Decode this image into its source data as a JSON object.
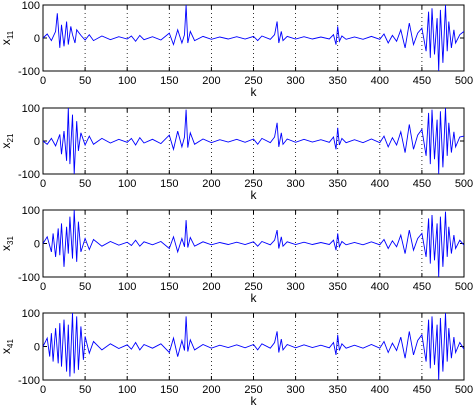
{
  "chart_data": [
    {
      "type": "line",
      "xlabel": "k",
      "ylabel": {
        "base": "x",
        "sub": "11"
      },
      "xlim": [
        0,
        500
      ],
      "ylim": [
        -100,
        100
      ],
      "xticks": [
        "0",
        "50",
        "100",
        "150",
        "200",
        "250",
        "300",
        "350",
        "400",
        "450",
        "500"
      ],
      "yticks": [
        "100",
        "0",
        "-100"
      ],
      "grid": "vertical dotted",
      "color": "#0000ff",
      "series": [
        {
          "x": [
            0,
            5,
            10,
            15,
            17,
            20,
            22,
            25,
            28,
            30,
            33,
            35,
            38,
            40,
            45,
            50,
            55,
            60,
            70,
            80,
            90,
            100,
            105,
            110,
            115,
            120,
            130,
            140,
            150,
            155,
            160,
            165,
            168,
            170,
            172,
            175,
            180,
            190,
            200,
            210,
            220,
            230,
            240,
            250,
            255,
            260,
            270,
            275,
            278,
            280,
            283,
            285,
            290,
            300,
            310,
            320,
            330,
            340,
            345,
            348,
            350,
            352,
            355,
            360,
            370,
            380,
            390,
            400,
            405,
            410,
            415,
            420,
            425,
            430,
            435,
            440,
            445,
            450,
            455,
            458,
            460,
            462,
            465,
            468,
            470,
            472,
            475,
            478,
            480,
            482,
            485,
            488,
            490,
            495,
            500
          ],
          "y": [
            0,
            12,
            -8,
            20,
            75,
            -30,
            40,
            -25,
            50,
            -20,
            35,
            10,
            -15,
            25,
            8,
            -6,
            10,
            -8,
            6,
            -5,
            4,
            -3,
            6,
            -10,
            8,
            -5,
            4,
            -6,
            15,
            -20,
            25,
            -15,
            10,
            100,
            -15,
            20,
            -8,
            5,
            -4,
            3,
            -3,
            4,
            -3,
            5,
            -8,
            6,
            -4,
            10,
            50,
            -15,
            20,
            -8,
            5,
            -3,
            4,
            -3,
            3,
            -3,
            10,
            -20,
            35,
            -10,
            6,
            -4,
            3,
            -4,
            5,
            -4,
            12,
            -15,
            8,
            -10,
            25,
            -30,
            45,
            -20,
            15,
            30,
            -40,
            80,
            -60,
            90,
            -50,
            60,
            -100,
            85,
            -75,
            100,
            -40,
            50,
            -30,
            25,
            -15,
            10,
            20
          ]
        }
      ]
    },
    {
      "type": "line",
      "xlabel": "k",
      "ylabel": {
        "base": "x",
        "sub": "21"
      },
      "xlim": [
        0,
        500
      ],
      "ylim": [
        -100,
        100
      ],
      "xticks": [
        "0",
        "50",
        "100",
        "150",
        "200",
        "250",
        "300",
        "350",
        "400",
        "450",
        "500"
      ],
      "yticks": [
        "100",
        "0",
        "-100"
      ],
      "grid": "vertical dotted",
      "color": "#0000ff",
      "series": [
        {
          "x": [
            0,
            5,
            10,
            15,
            20,
            22,
            25,
            28,
            30,
            32,
            35,
            37,
            40,
            42,
            45,
            50,
            55,
            60,
            70,
            80,
            90,
            100,
            105,
            110,
            115,
            120,
            130,
            140,
            150,
            155,
            160,
            165,
            168,
            170,
            172,
            175,
            180,
            190,
            200,
            210,
            220,
            230,
            240,
            250,
            255,
            260,
            270,
            275,
            278,
            280,
            283,
            285,
            290,
            300,
            310,
            320,
            330,
            340,
            345,
            348,
            350,
            352,
            355,
            360,
            370,
            380,
            390,
            400,
            405,
            410,
            415,
            420,
            425,
            430,
            435,
            440,
            445,
            450,
            455,
            458,
            460,
            462,
            465,
            468,
            470,
            472,
            475,
            478,
            480,
            482,
            485,
            488,
            490,
            495,
            500
          ],
          "y": [
            0,
            -10,
            8,
            -15,
            20,
            -40,
            30,
            -60,
            100,
            -70,
            80,
            -100,
            60,
            -30,
            25,
            -12,
            15,
            -10,
            8,
            -6,
            5,
            -4,
            8,
            -12,
            10,
            -6,
            5,
            -8,
            18,
            -25,
            30,
            -18,
            12,
            95,
            -20,
            25,
            -10,
            6,
            -5,
            4,
            -3,
            5,
            -4,
            6,
            -10,
            8,
            -5,
            12,
            55,
            -18,
            25,
            -10,
            6,
            -4,
            5,
            -3,
            4,
            -4,
            12,
            -25,
            40,
            -12,
            8,
            -5,
            4,
            -5,
            6,
            -5,
            15,
            -18,
            10,
            -12,
            28,
            -35,
            50,
            -25,
            18,
            35,
            -45,
            85,
            -70,
            95,
            -55,
            65,
            -100,
            90,
            -80,
            100,
            -45,
            55,
            -35,
            28,
            -18,
            12,
            15
          ]
        }
      ]
    },
    {
      "type": "line",
      "xlabel": "k",
      "ylabel": {
        "base": "x",
        "sub": "31"
      },
      "xlim": [
        0,
        500
      ],
      "ylim": [
        -100,
        100
      ],
      "xticks": [
        "0",
        "50",
        "100",
        "150",
        "200",
        "250",
        "300",
        "350",
        "400",
        "450",
        "500"
      ],
      "yticks": [
        "100",
        "0",
        "-100"
      ],
      "grid": "vertical dotted",
      "color": "#0000ff",
      "series": [
        {
          "x": [
            0,
            5,
            10,
            12,
            15,
            18,
            20,
            22,
            25,
            28,
            30,
            32,
            35,
            37,
            40,
            42,
            45,
            50,
            55,
            60,
            70,
            80,
            90,
            100,
            105,
            110,
            115,
            120,
            130,
            140,
            150,
            155,
            160,
            165,
            168,
            170,
            172,
            175,
            180,
            190,
            200,
            210,
            220,
            230,
            240,
            250,
            255,
            260,
            270,
            275,
            278,
            280,
            283,
            285,
            290,
            300,
            310,
            320,
            330,
            340,
            345,
            348,
            350,
            352,
            355,
            360,
            370,
            380,
            390,
            400,
            405,
            410,
            415,
            420,
            425,
            430,
            435,
            440,
            445,
            450,
            455,
            458,
            460,
            462,
            465,
            468,
            470,
            472,
            475,
            478,
            480,
            482,
            485,
            488,
            490,
            495,
            500
          ],
          "y": [
            0,
            20,
            -25,
            30,
            -40,
            45,
            -35,
            60,
            -70,
            50,
            -30,
            80,
            -45,
            100,
            -55,
            65,
            -25,
            15,
            -18,
            12,
            -8,
            6,
            -5,
            4,
            -6,
            10,
            -8,
            5,
            -4,
            6,
            -15,
            20,
            -25,
            15,
            -10,
            70,
            -12,
            18,
            -8,
            5,
            -4,
            3,
            -3,
            4,
            -3,
            5,
            -8,
            6,
            -4,
            10,
            40,
            -15,
            20,
            -8,
            5,
            -3,
            4,
            -3,
            3,
            -3,
            10,
            -20,
            30,
            -10,
            6,
            -4,
            3,
            -4,
            5,
            -4,
            12,
            -15,
            8,
            -10,
            25,
            -30,
            40,
            -20,
            15,
            30,
            -40,
            75,
            -60,
            85,
            -50,
            60,
            -100,
            80,
            -70,
            95,
            -40,
            50,
            -30,
            25,
            -15,
            10,
            -5
          ]
        }
      ]
    },
    {
      "type": "line",
      "xlabel": "k",
      "ylabel": {
        "base": "x",
        "sub": "41"
      },
      "xlim": [
        0,
        500
      ],
      "ylim": [
        -100,
        100
      ],
      "xticks": [
        "0",
        "50",
        "100",
        "150",
        "200",
        "250",
        "300",
        "350",
        "400",
        "450",
        "500"
      ],
      "yticks": [
        "100",
        "0",
        "-100"
      ],
      "grid": "vertical dotted",
      "color": "#0000ff",
      "series": [
        {
          "x": [
            0,
            5,
            8,
            10,
            12,
            15,
            18,
            20,
            22,
            25,
            28,
            30,
            32,
            35,
            37,
            40,
            42,
            45,
            48,
            50,
            55,
            60,
            70,
            80,
            90,
            100,
            105,
            110,
            115,
            120,
            130,
            140,
            150,
            155,
            160,
            165,
            168,
            170,
            172,
            175,
            180,
            190,
            200,
            210,
            220,
            230,
            240,
            250,
            255,
            260,
            270,
            275,
            278,
            280,
            283,
            285,
            290,
            300,
            310,
            320,
            330,
            340,
            345,
            348,
            350,
            352,
            355,
            360,
            370,
            380,
            390,
            400,
            405,
            410,
            415,
            420,
            425,
            430,
            435,
            440,
            445,
            450,
            455,
            458,
            460,
            462,
            465,
            468,
            470,
            472,
            475,
            478,
            480,
            482,
            485,
            488,
            490,
            495,
            500
          ],
          "y": [
            0,
            25,
            -30,
            40,
            -45,
            55,
            -50,
            70,
            -60,
            80,
            -75,
            65,
            -90,
            100,
            -80,
            90,
            -70,
            60,
            -40,
            30,
            -20,
            15,
            -10,
            8,
            -6,
            5,
            -8,
            12,
            -10,
            6,
            -5,
            8,
            -18,
            25,
            -30,
            18,
            -12,
            90,
            -15,
            20,
            -10,
            6,
            -5,
            4,
            -3,
            5,
            -4,
            6,
            -10,
            8,
            -5,
            12,
            45,
            -18,
            22,
            -10,
            6,
            -4,
            5,
            -3,
            4,
            -4,
            12,
            -25,
            35,
            -12,
            8,
            -5,
            4,
            -5,
            6,
            -5,
            15,
            -18,
            10,
            -12,
            28,
            -35,
            45,
            -25,
            18,
            35,
            -45,
            80,
            -65,
            90,
            -55,
            65,
            -100,
            85,
            -75,
            100,
            -45,
            55,
            -35,
            28,
            -18,
            12,
            -8
          ]
        }
      ]
    }
  ]
}
